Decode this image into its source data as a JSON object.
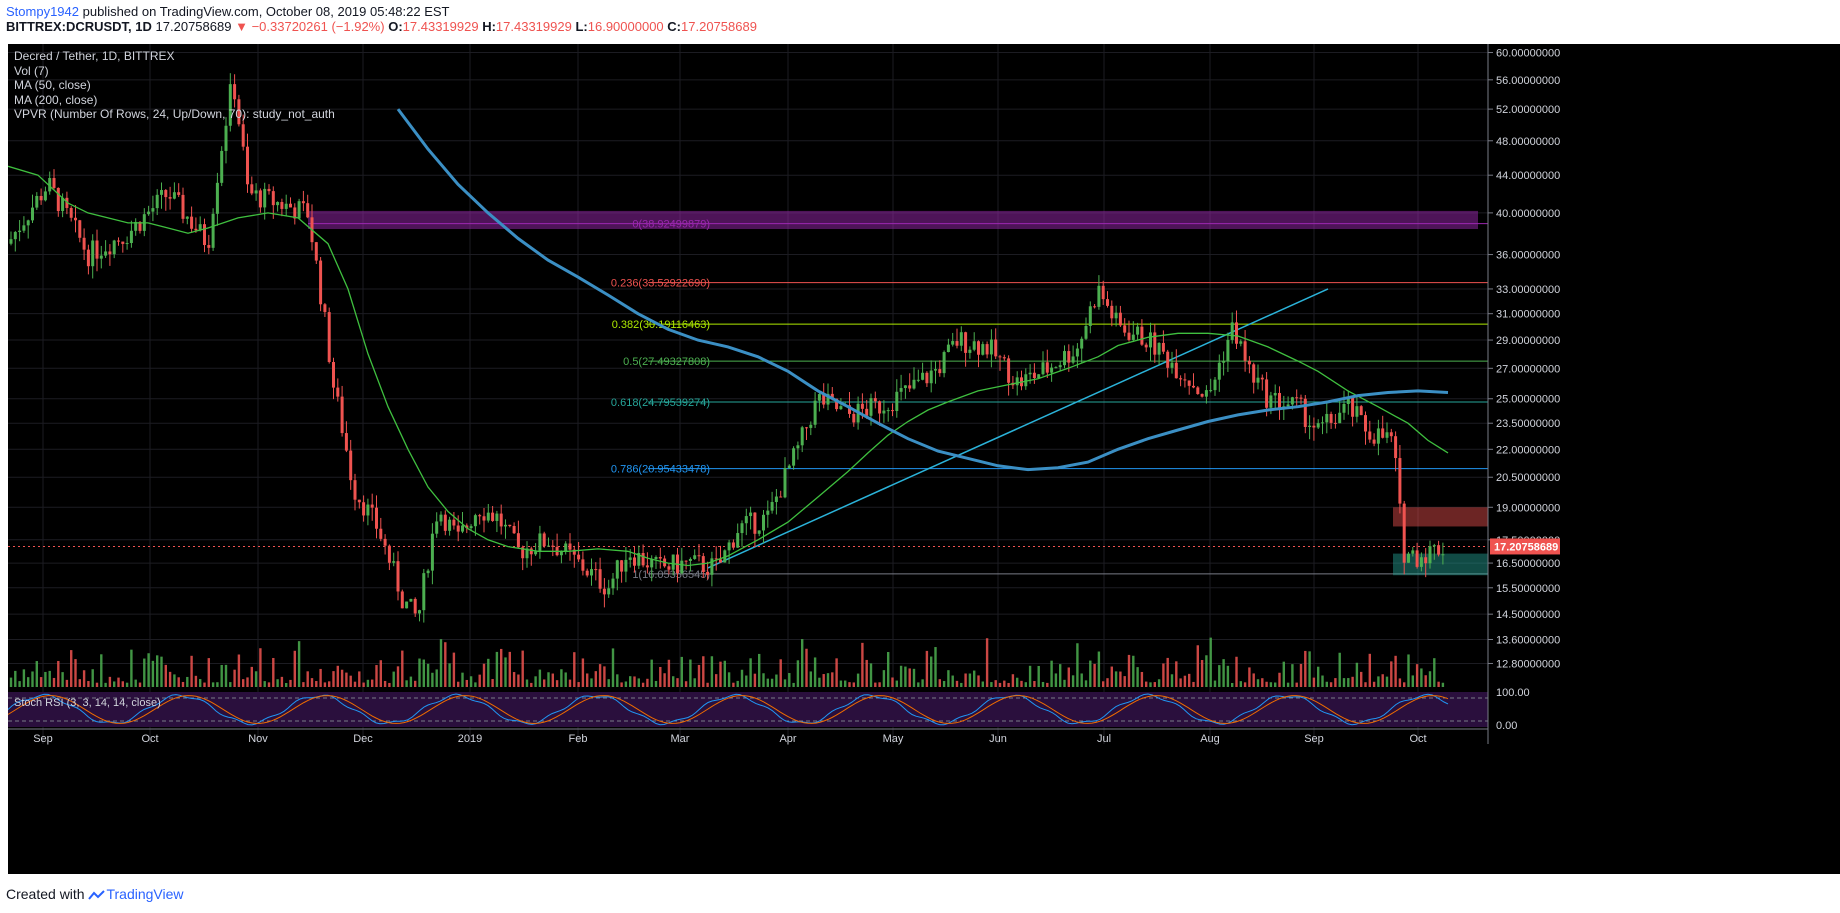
{
  "header": {
    "user": "Stompy1942",
    "published": " published on TradingView.com, October 08, 2019 05:48:22 EST",
    "symbol": "BITTREX:DCRUSDT, 1D",
    "price": "17.20758689",
    "change_arrow": "▼",
    "change": "−0.33720261 (−1.92%)",
    "o_label": "O:",
    "o": "17.43319929",
    "h_label": "H:",
    "h": "17.43319929",
    "l_label": "L:",
    "l": "16.90000000",
    "c_label": "C:",
    "c": "17.20758689"
  },
  "legend": {
    "title": "Decred / Tether, 1D, BITTREX",
    "vol": "Vol (7)",
    "ma50": "MA (50, close)",
    "ma200": "MA (200, close)",
    "vpvr": "VPVR (Number Of Rows, 24, Up/Down, 70): study_not_auth"
  },
  "stoch": {
    "label": "Stoch RSI (3, 3, 14, 14, close)",
    "ticks": [
      "100.00",
      "0.00"
    ]
  },
  "footer": {
    "created": "Created with",
    "brand": "TradingView"
  },
  "colors": {
    "up": "#4caf50",
    "down": "#ef5350",
    "ma50": "#3fbf3f",
    "ma200": "#3b8fc4",
    "fib0": "#9c27b0",
    "fib236": "#ef5350",
    "fib382": "#aeea00",
    "fib500": "#4caf50",
    "fib618": "#26a69a",
    "fib786": "#2196f3"
  },
  "chart_data": {
    "type": "candlestick",
    "title": "Decred / Tether, 1D, BITTREX",
    "y_scale": "log",
    "ylim": [
      12.0,
      61.0
    ],
    "y_ticks": [
      "60.00000000",
      "56.00000000",
      "52.00000000",
      "48.00000000",
      "44.00000000",
      "40.00000000",
      "36.00000000",
      "33.00000000",
      "31.00000000",
      "29.00000000",
      "27.00000000",
      "25.00000000",
      "23.50000000",
      "22.00000000",
      "20.50000000",
      "19.00000000",
      "17.50000000",
      "16.50000000",
      "15.50000000",
      "14.50000000",
      "13.60000000",
      "12.80000000"
    ],
    "x_ticks": [
      "Sep",
      "Oct",
      "Nov",
      "Dec",
      "2019",
      "Feb",
      "Mar",
      "Apr",
      "May",
      "Jun",
      "Jul",
      "Aug",
      "Sep",
      "Oct"
    ],
    "last_price": "17.20758689",
    "fib_levels": [
      {
        "label": "0(38.92499879)",
        "value": 38.925
      },
      {
        "label": "0.236(33.52922690)",
        "value": 33.529
      },
      {
        "label": "0.382(30.19116463)",
        "value": 30.191
      },
      {
        "label": "0.5(27.49327808)",
        "value": 27.493
      },
      {
        "label": "0.618(24.79539274)",
        "value": 24.795
      },
      {
        "label": "0.786(20.95433478)",
        "value": 20.954
      },
      {
        "label": "1(16.05356545)",
        "value": 16.054
      }
    ],
    "ma50_approx": [
      [
        0,
        45
      ],
      [
        30,
        44
      ],
      [
        60,
        41
      ],
      [
        80,
        40
      ],
      [
        100,
        39.5
      ],
      [
        120,
        39
      ],
      [
        140,
        39
      ],
      [
        160,
        38.5
      ],
      [
        180,
        38
      ],
      [
        200,
        38.5
      ],
      [
        230,
        39.5
      ],
      [
        260,
        40
      ],
      [
        290,
        39.5
      ],
      [
        320,
        37
      ],
      [
        340,
        33
      ],
      [
        360,
        28
      ],
      [
        380,
        24.5
      ],
      [
        400,
        22
      ],
      [
        420,
        20
      ],
      [
        440,
        18.8
      ],
      [
        460,
        18
      ],
      [
        480,
        17.5
      ],
      [
        500,
        17.2
      ],
      [
        530,
        17
      ],
      [
        560,
        17
      ],
      [
        590,
        17.1
      ],
      [
        620,
        17
      ],
      [
        640,
        16.7
      ],
      [
        660,
        16.5
      ],
      [
        680,
        16.4
      ],
      [
        700,
        16.5
      ],
      [
        720,
        16.8
      ],
      [
        750,
        17.5
      ],
      [
        780,
        18.3
      ],
      [
        810,
        19.5
      ],
      [
        840,
        20.8
      ],
      [
        860,
        21.8
      ],
      [
        880,
        22.8
      ],
      [
        900,
        23.6
      ],
      [
        920,
        24.3
      ],
      [
        940,
        24.8
      ],
      [
        970,
        25.5
      ],
      [
        1000,
        25.9
      ],
      [
        1030,
        26.3
      ],
      [
        1060,
        27
      ],
      [
        1090,
        27.8
      ],
      [
        1110,
        28.6
      ],
      [
        1140,
        29.2
      ],
      [
        1170,
        29.5
      ],
      [
        1200,
        29.5
      ],
      [
        1230,
        29.3
      ],
      [
        1260,
        28.5
      ],
      [
        1290,
        27.5
      ],
      [
        1310,
        26.8
      ],
      [
        1340,
        25.5
      ],
      [
        1370,
        24.5
      ],
      [
        1400,
        23.5
      ],
      [
        1420,
        22.5
      ],
      [
        1440,
        21.8
      ]
    ],
    "ma200_approx": [
      [
        390,
        52
      ],
      [
        420,
        47
      ],
      [
        450,
        43
      ],
      [
        480,
        40
      ],
      [
        510,
        37.5
      ],
      [
        540,
        35.5
      ],
      [
        570,
        34
      ],
      [
        600,
        32.5
      ],
      [
        630,
        31
      ],
      [
        660,
        29.8
      ],
      [
        690,
        29
      ],
      [
        720,
        28.5
      ],
      [
        750,
        27.8
      ],
      [
        780,
        26.8
      ],
      [
        810,
        25.5
      ],
      [
        840,
        24.5
      ],
      [
        870,
        23.5
      ],
      [
        900,
        22.6
      ],
      [
        930,
        21.9
      ],
      [
        960,
        21.5
      ],
      [
        990,
        21.1
      ],
      [
        1020,
        20.9
      ],
      [
        1050,
        21
      ],
      [
        1080,
        21.3
      ],
      [
        1110,
        22
      ],
      [
        1140,
        22.6
      ],
      [
        1170,
        23.1
      ],
      [
        1200,
        23.6
      ],
      [
        1230,
        24
      ],
      [
        1260,
        24.3
      ],
      [
        1290,
        24.5
      ],
      [
        1320,
        24.8
      ],
      [
        1350,
        25.2
      ],
      [
        1380,
        25.4
      ],
      [
        1410,
        25.5
      ],
      [
        1440,
        25.4
      ]
    ]
  }
}
